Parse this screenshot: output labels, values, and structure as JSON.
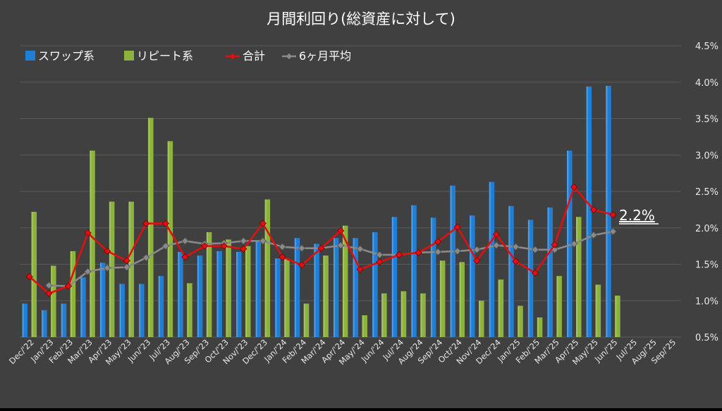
{
  "chart_data": {
    "type": "bar",
    "title": "月間利回り(総資産に対して)",
    "categories": [
      "Dec/'22",
      "Jan/'23",
      "Feb/'23",
      "Mar/'23",
      "Apr/'23",
      "May/'23",
      "Jun/'23",
      "Jul/'23",
      "Aug/'23",
      "Sep/'23",
      "Oct/'23",
      "Nov/'23",
      "Dec/'23",
      "Jan/'24",
      "Feb/'24",
      "Mar/'24",
      "Apr/'24",
      "May/'24",
      "Jun/'24",
      "Jul/'24",
      "Aug/'24",
      "Sep/'24",
      "Oct/'24",
      "Nov/'24",
      "Dec/'24",
      "Jan/'25",
      "Feb/'25",
      "Mar/'25",
      "Apr/'25",
      "May/'25",
      "Jun/'25",
      "Jul/'25",
      "Aug/'25",
      "Sep/'25"
    ],
    "y_ticks": [
      "0.5%",
      "1.0%",
      "1.5%",
      "2.0%",
      "2.5%",
      "3.0%",
      "3.5%",
      "4.0%",
      "4.5%"
    ],
    "ylim": [
      0.5,
      4.5
    ],
    "grid": true,
    "legend_position": "top-left",
    "series": [
      {
        "name": "スワップ系",
        "kind": "bar",
        "color": "#1f7fd6",
        "values": [
          0.96,
          0.87,
          0.96,
          1.32,
          1.52,
          1.23,
          1.23,
          1.34,
          1.67,
          1.62,
          1.68,
          1.67,
          1.82,
          1.58,
          1.86,
          1.78,
          1.86,
          1.86,
          1.94,
          2.15,
          2.31,
          2.14,
          2.58,
          2.17,
          2.63,
          2.3,
          2.11,
          2.28,
          3.06,
          3.94,
          3.95,
          null,
          null,
          null
        ]
      },
      {
        "name": "リピート系",
        "kind": "bar",
        "color": "#8cb33a",
        "values": [
          2.22,
          1.48,
          1.68,
          3.06,
          2.36,
          2.36,
          3.51,
          3.19,
          1.24,
          1.94,
          1.84,
          1.75,
          2.39,
          1.57,
          0.96,
          1.62,
          2.03,
          0.8,
          1.1,
          1.13,
          1.1,
          1.55,
          1.53,
          1.0,
          1.29,
          0.93,
          0.77,
          1.34,
          2.15,
          1.22,
          1.07,
          null,
          null,
          null
        ]
      },
      {
        "name": "合計",
        "kind": "line",
        "color": "#e01010",
        "values": [
          1.33,
          1.1,
          1.2,
          1.93,
          1.68,
          1.55,
          2.06,
          2.06,
          1.6,
          1.75,
          1.75,
          1.71,
          2.06,
          1.6,
          1.49,
          1.72,
          1.96,
          1.43,
          1.53,
          1.63,
          1.66,
          1.81,
          2.01,
          1.55,
          1.91,
          1.54,
          1.38,
          1.77,
          2.56,
          2.25,
          2.18,
          null,
          null,
          null
        ]
      },
      {
        "name": "6ヶ月平均",
        "kind": "line",
        "color": "#8a8a8a",
        "values": [
          null,
          1.21,
          1.2,
          1.4,
          1.45,
          1.46,
          1.59,
          1.75,
          1.82,
          1.78,
          1.79,
          1.82,
          1.82,
          1.74,
          1.72,
          1.72,
          1.76,
          1.71,
          1.63,
          1.63,
          1.66,
          1.67,
          1.68,
          1.7,
          1.76,
          1.74,
          1.7,
          1.7,
          1.78,
          1.9,
          1.95,
          null,
          null,
          null
        ]
      }
    ],
    "annotation": "2.2%"
  },
  "colors": {
    "background": "#404040",
    "grid": "#5a5a5a",
    "text": "#ffffff",
    "axis_text": "#e8e8e8"
  }
}
